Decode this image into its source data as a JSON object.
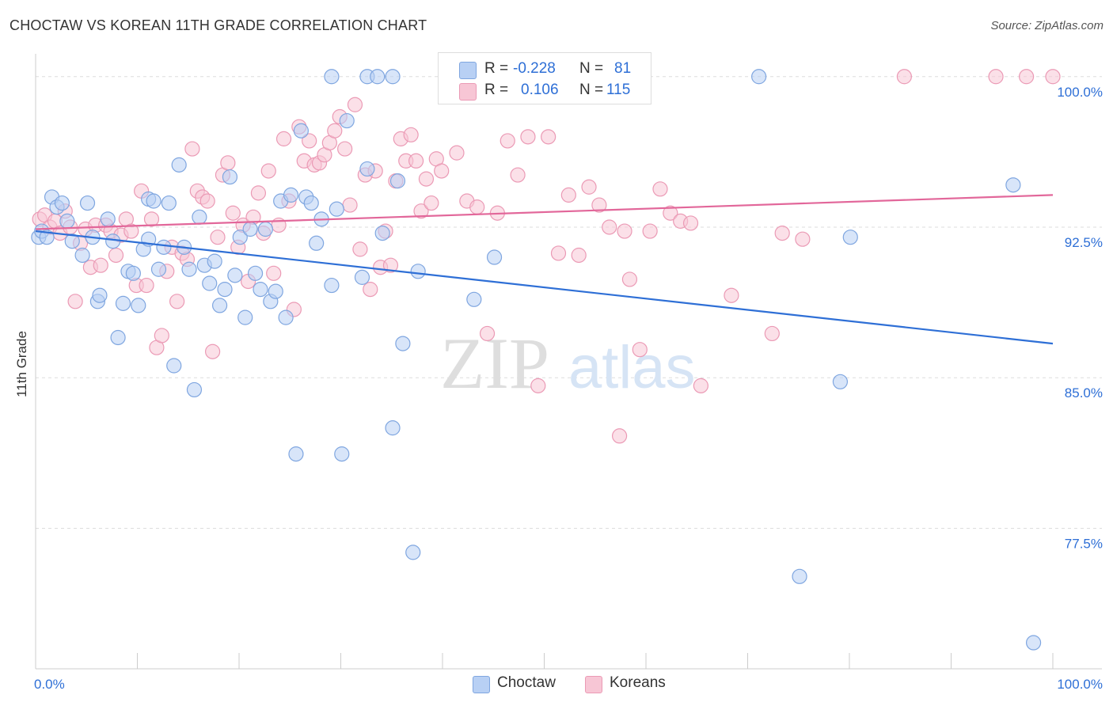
{
  "header": {
    "title": "CHOCTAW VS KOREAN 11TH GRADE CORRELATION CHART",
    "source": "Source: ZipAtlas.com"
  },
  "watermark": {
    "zip": "ZIP",
    "atlas": "atlas"
  },
  "legend": {
    "series": [
      {
        "r_label": "R =",
        "r_value": "-0.228",
        "n_label": "N =",
        "n_value": "81"
      },
      {
        "r_label": "R =",
        "r_value": "0.106",
        "n_label": "N =",
        "n_value": "115"
      }
    ]
  },
  "bottom_legend": [
    "Choctaw",
    "Koreans"
  ],
  "colors": {
    "choctaw_fill": "#b8d0f4",
    "choctaw_stroke": "#7fa6e0",
    "choctaw_line": "#2E6FD6",
    "koreans_fill": "#f7c6d5",
    "koreans_stroke": "#eb9ab5",
    "koreans_line": "#E2679A",
    "tick_label": "#2E6FD6",
    "grid": "#dddddd"
  },
  "chart_data": {
    "type": "scatter",
    "title": "CHOCTAW VS KOREAN 11TH GRADE CORRELATION CHART",
    "xlabel": "",
    "ylabel": "11th Grade",
    "xlim": [
      0,
      100
    ],
    "ylim": [
      70.5,
      100.7
    ],
    "x_tick_labels": [
      "0.0%",
      "100.0%"
    ],
    "y_ticks": [
      {
        "value": 77.5,
        "label": "77.5%"
      },
      {
        "value": 85.0,
        "label": "85.0%"
      },
      {
        "value": 92.5,
        "label": "92.5%"
      },
      {
        "value": 100.0,
        "label": "100.0%"
      }
    ],
    "grid": true,
    "legend_position": "top-center",
    "series": [
      {
        "name": "Choctaw",
        "r": -0.228,
        "n": 81,
        "trend": {
          "x": [
            0,
            100
          ],
          "y": [
            92.3,
            86.7
          ]
        },
        "points": [
          [
            0.3,
            92.0
          ],
          [
            0.6,
            92.3
          ],
          [
            1.1,
            92.0
          ],
          [
            1.6,
            94.0
          ],
          [
            2.1,
            93.5
          ],
          [
            2.6,
            93.7
          ],
          [
            3.1,
            92.8
          ],
          [
            5.1,
            93.7
          ],
          [
            3.6,
            91.8
          ],
          [
            5.6,
            92.0
          ],
          [
            4.6,
            91.1
          ],
          [
            6.1,
            88.8
          ],
          [
            6.3,
            89.1
          ],
          [
            7.1,
            92.9
          ],
          [
            7.6,
            91.8
          ],
          [
            8.1,
            87.0
          ],
          [
            8.6,
            88.7
          ],
          [
            9.1,
            90.3
          ],
          [
            9.6,
            90.2
          ],
          [
            10.1,
            88.6
          ],
          [
            10.6,
            91.4
          ],
          [
            11.1,
            91.9
          ],
          [
            11.1,
            93.9
          ],
          [
            11.6,
            93.8
          ],
          [
            12.1,
            90.4
          ],
          [
            12.6,
            91.5
          ],
          [
            13.1,
            93.7
          ],
          [
            13.6,
            85.6
          ],
          [
            14.1,
            95.6
          ],
          [
            14.6,
            91.5
          ],
          [
            15.1,
            90.4
          ],
          [
            15.6,
            84.4
          ],
          [
            16.1,
            93.0
          ],
          [
            16.6,
            90.6
          ],
          [
            17.1,
            89.7
          ],
          [
            17.6,
            90.8
          ],
          [
            18.1,
            88.6
          ],
          [
            18.6,
            89.4
          ],
          [
            19.1,
            95.0
          ],
          [
            19.6,
            90.1
          ],
          [
            20.1,
            92.0
          ],
          [
            20.6,
            88.0
          ],
          [
            21.1,
            92.4
          ],
          [
            21.6,
            90.2
          ],
          [
            22.1,
            89.4
          ],
          [
            22.6,
            92.4
          ],
          [
            23.1,
            88.8
          ],
          [
            23.6,
            89.3
          ],
          [
            24.1,
            93.8
          ],
          [
            24.6,
            88.0
          ],
          [
            25.1,
            94.1
          ],
          [
            25.6,
            81.2
          ],
          [
            26.1,
            97.3
          ],
          [
            26.6,
            94.0
          ],
          [
            27.1,
            93.7
          ],
          [
            27.6,
            91.7
          ],
          [
            28.1,
            92.9
          ],
          [
            29.1,
            100.0
          ],
          [
            29.1,
            89.6
          ],
          [
            29.6,
            93.4
          ],
          [
            30.1,
            81.2
          ],
          [
            30.6,
            97.8
          ],
          [
            32.1,
            90.0
          ],
          [
            32.6,
            95.4
          ],
          [
            32.6,
            100.0
          ],
          [
            33.6,
            100.0
          ],
          [
            34.1,
            92.2
          ],
          [
            35.1,
            100.0
          ],
          [
            35.1,
            82.5
          ],
          [
            35.6,
            94.8
          ],
          [
            36.1,
            86.7
          ],
          [
            37.1,
            76.3
          ],
          [
            37.6,
            90.3
          ],
          [
            43.1,
            88.9
          ],
          [
            45.1,
            91.0
          ],
          [
            71.1,
            100.0
          ],
          [
            75.1,
            75.1
          ],
          [
            79.1,
            84.8
          ],
          [
            80.1,
            92.0
          ],
          [
            96.1,
            94.6
          ],
          [
            98.1,
            71.8
          ]
        ]
      },
      {
        "name": "Koreans",
        "r": 0.106,
        "n": 115,
        "trend": {
          "x": [
            0,
            100
          ],
          "y": [
            92.4,
            94.1
          ]
        },
        "points": [
          [
            0.4,
            92.9
          ],
          [
            0.9,
            93.1
          ],
          [
            1.4,
            92.5
          ],
          [
            1.9,
            92.8
          ],
          [
            2.4,
            92.2
          ],
          [
            2.9,
            93.3
          ],
          [
            3.4,
            92.5
          ],
          [
            3.9,
            88.8
          ],
          [
            4.4,
            91.7
          ],
          [
            4.9,
            92.4
          ],
          [
            5.4,
            90.5
          ],
          [
            5.9,
            92.6
          ],
          [
            6.4,
            90.6
          ],
          [
            6.9,
            92.6
          ],
          [
            7.4,
            92.3
          ],
          [
            7.9,
            91.1
          ],
          [
            8.4,
            92.1
          ],
          [
            8.9,
            92.9
          ],
          [
            9.4,
            92.3
          ],
          [
            9.9,
            89.6
          ],
          [
            10.4,
            94.3
          ],
          [
            10.9,
            89.6
          ],
          [
            11.4,
            92.9
          ],
          [
            11.9,
            86.5
          ],
          [
            12.4,
            87.1
          ],
          [
            12.9,
            90.3
          ],
          [
            13.4,
            91.5
          ],
          [
            13.9,
            88.8
          ],
          [
            14.4,
            91.2
          ],
          [
            14.9,
            90.9
          ],
          [
            15.4,
            96.4
          ],
          [
            15.9,
            94.3
          ],
          [
            16.4,
            94.0
          ],
          [
            16.9,
            93.8
          ],
          [
            17.4,
            86.3
          ],
          [
            17.9,
            92.0
          ],
          [
            18.4,
            95.1
          ],
          [
            18.9,
            95.7
          ],
          [
            19.4,
            93.2
          ],
          [
            19.9,
            91.5
          ],
          [
            20.4,
            92.6
          ],
          [
            20.9,
            89.8
          ],
          [
            21.4,
            93.0
          ],
          [
            21.9,
            94.2
          ],
          [
            22.4,
            92.2
          ],
          [
            22.9,
            95.3
          ],
          [
            23.4,
            90.2
          ],
          [
            23.9,
            92.6
          ],
          [
            24.4,
            96.9
          ],
          [
            24.9,
            93.8
          ],
          [
            25.4,
            88.4
          ],
          [
            25.9,
            97.5
          ],
          [
            26.4,
            95.8
          ],
          [
            26.9,
            96.8
          ],
          [
            27.4,
            95.6
          ],
          [
            27.9,
            95.7
          ],
          [
            28.4,
            96.1
          ],
          [
            28.9,
            96.7
          ],
          [
            29.4,
            97.3
          ],
          [
            29.9,
            98.0
          ],
          [
            30.4,
            96.4
          ],
          [
            30.9,
            93.6
          ],
          [
            31.4,
            98.6
          ],
          [
            31.9,
            91.4
          ],
          [
            32.4,
            95.1
          ],
          [
            32.9,
            89.4
          ],
          [
            33.4,
            95.3
          ],
          [
            33.9,
            90.5
          ],
          [
            34.4,
            92.3
          ],
          [
            34.9,
            90.6
          ],
          [
            35.4,
            94.8
          ],
          [
            35.9,
            96.9
          ],
          [
            36.4,
            95.8
          ],
          [
            36.9,
            97.1
          ],
          [
            37.4,
            95.8
          ],
          [
            37.9,
            93.3
          ],
          [
            38.4,
            94.9
          ],
          [
            38.9,
            93.7
          ],
          [
            39.4,
            95.9
          ],
          [
            39.9,
            95.3
          ],
          [
            40.4,
            100.0
          ],
          [
            41.4,
            96.2
          ],
          [
            42.4,
            93.8
          ],
          [
            43.4,
            93.5
          ],
          [
            44.4,
            87.2
          ],
          [
            45.4,
            93.2
          ],
          [
            46.4,
            96.8
          ],
          [
            47.4,
            95.1
          ],
          [
            48.4,
            97.0
          ],
          [
            49.4,
            84.6
          ],
          [
            50.4,
            97.0
          ],
          [
            51.4,
            91.2
          ],
          [
            52.4,
            94.1
          ],
          [
            53.4,
            91.1
          ],
          [
            54.4,
            94.5
          ],
          [
            55.4,
            93.6
          ],
          [
            56.4,
            92.5
          ],
          [
            57.4,
            82.1
          ],
          [
            57.9,
            92.3
          ],
          [
            58.4,
            89.9
          ],
          [
            59.4,
            86.4
          ],
          [
            60.4,
            92.3
          ],
          [
            61.4,
            94.4
          ],
          [
            62.4,
            93.2
          ],
          [
            63.4,
            92.8
          ],
          [
            64.4,
            92.7
          ],
          [
            65.4,
            84.6
          ],
          [
            68.4,
            89.1
          ],
          [
            72.4,
            87.2
          ],
          [
            73.4,
            92.2
          ],
          [
            75.4,
            91.9
          ],
          [
            85.4,
            100.0
          ],
          [
            94.4,
            100.0
          ],
          [
            97.4,
            100.0
          ],
          [
            100.0,
            100.0
          ]
        ]
      }
    ]
  }
}
